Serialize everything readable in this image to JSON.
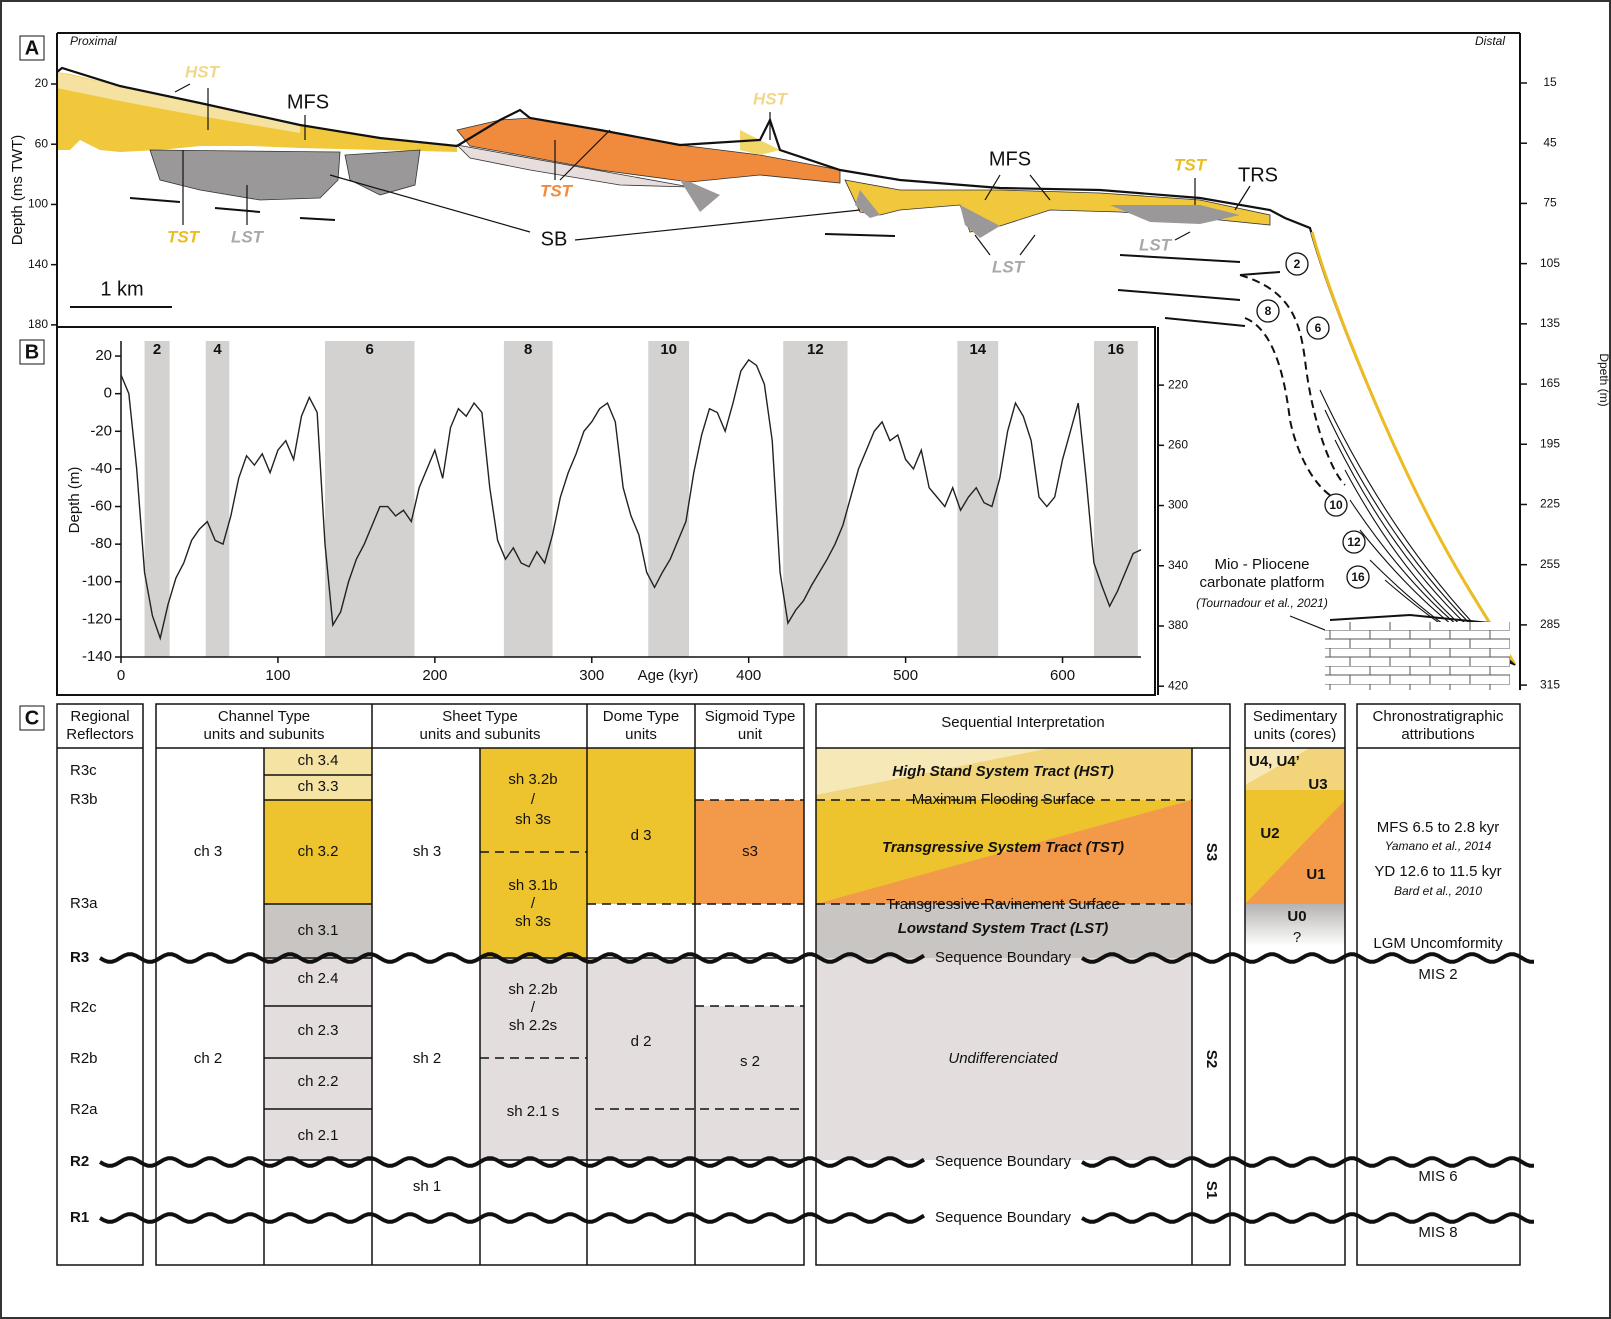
{
  "panelA": {
    "letter": "A",
    "proximal": "Proximal",
    "distal": "Distal",
    "y_label": "Depth (ms TWT)",
    "y2_label": "Dpeth (m)",
    "scale": "1 km",
    "twt_ticks": [
      20,
      60,
      100,
      140,
      180
    ],
    "twt_ticks_lower": [
      220,
      260,
      300,
      340,
      380,
      420
    ],
    "depth_ticks": [
      15,
      45,
      75,
      105,
      135,
      165,
      195,
      225,
      255,
      285,
      315
    ],
    "hst": [
      "HST",
      "HST"
    ],
    "mfs": [
      "MFS",
      "MFS"
    ],
    "tst": [
      "TST",
      "TST",
      "TST"
    ],
    "lst": [
      "LST",
      "LST",
      "LST"
    ],
    "sb": "SB",
    "trs": "TRS",
    "clinoforms": [
      2,
      8,
      6,
      10,
      12,
      16
    ],
    "platform": [
      "Mio - Pliocene",
      "carbonate platform"
    ],
    "platform_ref": "(Tournadour et al., 2021)"
  },
  "chart_data": {
    "type": "line",
    "letter": "B",
    "x_label": "Age (kyr)",
    "y_label": "Depth (m)",
    "xlim": [
      0,
      650
    ],
    "ylim": [
      -140,
      28
    ],
    "xticks": [
      0,
      100,
      200,
      300,
      400,
      500,
      600
    ],
    "yticks": [
      20,
      0,
      -20,
      -40,
      -60,
      -80,
      -100,
      -120,
      -140
    ],
    "shaded_periods": [
      {
        "label": 2,
        "start": 15,
        "end": 31
      },
      {
        "label": 4,
        "start": 54,
        "end": 69
      },
      {
        "label": 6,
        "start": 130,
        "end": 187
      },
      {
        "label": 8,
        "start": 244,
        "end": 275
      },
      {
        "label": 10,
        "start": 336,
        "end": 362
      },
      {
        "label": 12,
        "start": 422,
        "end": 463
      },
      {
        "label": 14,
        "start": 533,
        "end": 559
      },
      {
        "label": 16,
        "start": 620,
        "end": 648
      }
    ],
    "x": [
      0,
      5,
      10,
      15,
      20,
      25,
      30,
      35,
      40,
      45,
      50,
      55,
      60,
      65,
      70,
      75,
      80,
      85,
      90,
      95,
      100,
      105,
      110,
      115,
      120,
      125,
      130,
      135,
      140,
      145,
      150,
      155,
      160,
      165,
      170,
      175,
      180,
      185,
      190,
      195,
      200,
      205,
      210,
      215,
      220,
      225,
      230,
      235,
      240,
      245,
      250,
      255,
      260,
      265,
      270,
      275,
      280,
      285,
      290,
      295,
      300,
      305,
      310,
      315,
      320,
      325,
      330,
      335,
      340,
      345,
      350,
      355,
      360,
      365,
      370,
      375,
      380,
      385,
      390,
      395,
      400,
      405,
      410,
      415,
      420,
      425,
      430,
      435,
      440,
      445,
      450,
      455,
      460,
      465,
      470,
      475,
      480,
      485,
      490,
      495,
      500,
      505,
      510,
      515,
      520,
      525,
      530,
      535,
      540,
      545,
      550,
      555,
      560,
      565,
      570,
      575,
      580,
      585,
      590,
      595,
      600,
      605,
      610,
      615,
      620,
      625,
      630,
      635,
      640,
      645,
      650
    ],
    "series": [
      {
        "color": "#222222",
        "values": [
          10,
          0,
          -40,
          -95,
          -118,
          -130,
          -112,
          -98,
          -90,
          -78,
          -72,
          -68,
          -78,
          -80,
          -65,
          -45,
          -33,
          -38,
          -32,
          -42,
          -30,
          -25,
          -35,
          -12,
          -2,
          -10,
          -80,
          -123,
          -116,
          -100,
          -88,
          -80,
          -70,
          -60,
          -60,
          -65,
          -62,
          -68,
          -50,
          -40,
          -30,
          -45,
          -18,
          -8,
          -12,
          -5,
          -10,
          -50,
          -78,
          -88,
          -82,
          -90,
          -92,
          -84,
          -90,
          -75,
          -55,
          -42,
          -32,
          -20,
          -15,
          -8,
          -5,
          -15,
          -50,
          -65,
          -75,
          -95,
          -103,
          -95,
          -88,
          -78,
          -68,
          -42,
          -22,
          -8,
          -10,
          -20,
          -5,
          12,
          18,
          15,
          5,
          -25,
          -95,
          -122,
          -115,
          -110,
          -102,
          -95,
          -88,
          -80,
          -70,
          -55,
          -40,
          -30,
          -20,
          -15,
          -25,
          -22,
          -35,
          -40,
          -30,
          -50,
          -55,
          -60,
          -50,
          -62,
          -55,
          -50,
          -58,
          -60,
          -45,
          -20,
          -5,
          -12,
          -25,
          -55,
          -60,
          -55,
          -35,
          -20,
          -5,
          -45,
          -90,
          -102,
          -113,
          -105,
          -95,
          -85,
          -83
        ]
      }
    ]
  },
  "panelC": {
    "letter": "C",
    "headers": [
      [
        "Regional",
        "Reflectors"
      ],
      [
        "Channel Type",
        "units and subunits"
      ],
      [
        "Sheet Type",
        "units and subunits"
      ],
      [
        "Dome Type",
        "units"
      ],
      [
        "Sigmoid Type",
        "unit"
      ],
      [
        "Sequential Interpretation"
      ],
      [
        "Sedimentary",
        "units (cores)"
      ],
      [
        "Chronostratigraphic",
        "attributions"
      ]
    ],
    "reflectors": [
      "R3c",
      "R3b",
      "R3a",
      "R3",
      "R2c",
      "R2b",
      "R2a",
      "R2",
      "R1"
    ],
    "channel_units": [
      "ch 3",
      "ch 2"
    ],
    "channel_subunits": [
      "ch 3.4",
      "ch 3.3",
      "ch 3.2",
      "ch 3.1",
      "ch 2.4",
      "ch 2.3",
      "ch 2.2",
      "ch 2.1"
    ],
    "sheet_units": [
      "sh 3",
      "sh 2",
      "sh 1"
    ],
    "sheet_subunits": [
      [
        "sh 3.2b",
        "/",
        "sh 3s"
      ],
      [
        "sh 3.1b",
        "/",
        "sh 3s"
      ],
      [
        "sh 2.2b",
        "/",
        "sh 2.2s"
      ],
      [
        "sh 2.1 s"
      ]
    ],
    "dome_units": [
      "d 3",
      "d 2"
    ],
    "sigmoid_units": [
      "s3",
      "s 2"
    ],
    "sequential": {
      "hst": "High Stand System Tract (HST)",
      "mfs": "Maximum Flooding Surface",
      "tst": "Transgressive System Tract (TST)",
      "trs": "Transgressive Ravinement Surface",
      "lst": "Lowstand System Tract (LST)",
      "undifferentiated": "Undifferenciated",
      "boundaries": [
        "Sequence Boundary",
        "Sequence Boundary",
        "Sequence Boundary"
      ],
      "sequences": [
        "S3",
        "S2",
        "S1"
      ]
    },
    "sedimentary": [
      "U4, U4’",
      "U3",
      "U2",
      "U1",
      "U0",
      "?"
    ],
    "chrono": [
      "MFS 6.5 to 2.8 kyr",
      "Yamano et al., 2014",
      "YD 12.6 to 11.5 kyr",
      "Bard et al., 2010",
      "LGM Uncomformity",
      "MIS 2",
      "MIS 6",
      "MIS 8"
    ]
  }
}
